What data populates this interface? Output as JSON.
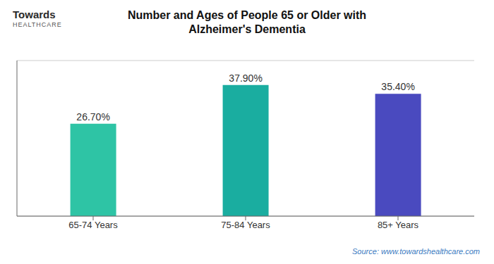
{
  "chart_data": {
    "type": "bar",
    "title": "Number and Ages of People 65 or Older with\nAlzheimer's Dementia",
    "categories": [
      "65-74 Years",
      "75-84 Years",
      "85+ Years"
    ],
    "values": [
      26.7,
      37.9,
      35.4
    ],
    "value_labels": [
      "26.70%",
      "37.90%",
      "35.40%"
    ],
    "colors": [
      "#2ec4a5",
      "#1aada0",
      "#4a4abf"
    ],
    "ylim": [
      0,
      45
    ],
    "yticks": [
      0,
      10,
      20,
      30,
      40
    ],
    "grid": true,
    "data_labels": true,
    "tick_labels": "x",
    "annotations": [
      "Source: www.towardshealthcare.com",
      "Towards",
      "HEALTHCARE"
    ]
  }
}
